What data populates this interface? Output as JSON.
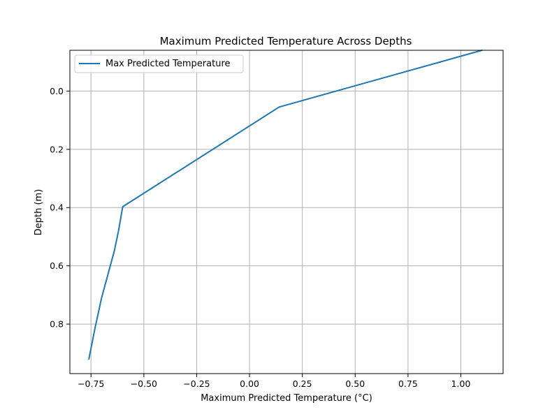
{
  "chart_data": {
    "type": "line",
    "title": "Maximum Predicted Temperature Across Depths",
    "xlabel": "Maximum Predicted Temperature (°C)",
    "ylabel": "Depth (m)",
    "xlim": [
      -0.85,
      1.2
    ],
    "ylim": [
      0.97,
      -0.14
    ],
    "y_inverted": true,
    "xticks": [
      -0.75,
      -0.5,
      -0.25,
      0.0,
      0.25,
      0.5,
      0.75,
      1.0
    ],
    "xtick_labels": [
      "−0.75",
      "−0.50",
      "−0.25",
      "0.00",
      "0.25",
      "0.50",
      "0.75",
      "1.00"
    ],
    "yticks": [
      0.0,
      0.2,
      0.4,
      0.6,
      0.8
    ],
    "ytick_labels": [
      "0.0",
      "0.2",
      "0.4",
      "0.6",
      "0.8"
    ],
    "grid": true,
    "legend_position": "top-left",
    "series": [
      {
        "name": "Max Predicted Temperature",
        "color": "#1f77b4",
        "x": [
          1.1,
          0.14,
          -0.6,
          -0.62,
          -0.64,
          -0.67,
          -0.7,
          -0.73,
          -0.76
        ],
        "y": [
          -0.14,
          0.055,
          0.397,
          0.48,
          0.55,
          0.63,
          0.71,
          0.81,
          0.92
        ]
      }
    ]
  }
}
